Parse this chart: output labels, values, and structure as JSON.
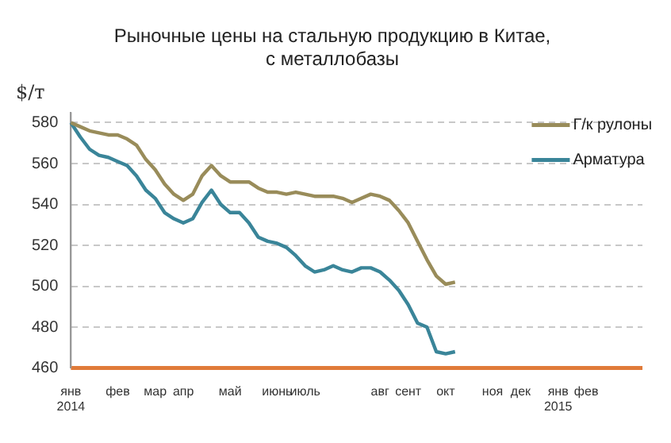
{
  "chart_data": {
    "type": "line",
    "title": "Рыночные цены на стальную продукцию в Китае,\nс металлобазы",
    "ylabel": "$/т",
    "categories": [
      "янв\n2014",
      null,
      null,
      null,
      null,
      "фев",
      null,
      null,
      null,
      "мар",
      null,
      null,
      "апр",
      null,
      null,
      null,
      null,
      "май",
      null,
      null,
      null,
      null,
      "июнь",
      null,
      null,
      "июль",
      null,
      null,
      null,
      null,
      null,
      null,
      null,
      "авг",
      null,
      null,
      "сент",
      null,
      null,
      null,
      "окт",
      null,
      null,
      null,
      null,
      "ноя",
      null,
      null,
      "дек",
      null,
      null,
      null,
      "янв\n2015",
      null,
      null,
      "фев",
      null,
      null,
      null,
      null,
      null,
      null
    ],
    "series": [
      {
        "name": "Г/к рулоны",
        "color": "#998c5a",
        "values": [
          580,
          578,
          576,
          575,
          574,
          574,
          572,
          569,
          562,
          557,
          550,
          545,
          542,
          545,
          554,
          559,
          554,
          551,
          551,
          551,
          548,
          546,
          546,
          545,
          546,
          545,
          544,
          544,
          544,
          543,
          541,
          543,
          545,
          544,
          542,
          537,
          531,
          522,
          513,
          505,
          501,
          502,
          null,
          null,
          null,
          null,
          null,
          null,
          null,
          null,
          null,
          null,
          null,
          null,
          null,
          null,
          null,
          null,
          null,
          null,
          null,
          null
        ]
      },
      {
        "name": "Арматура",
        "color": "#3a8599",
        "values": [
          580,
          573,
          567,
          564,
          563,
          561,
          559,
          554,
          547,
          543,
          536,
          533,
          531,
          533,
          541,
          547,
          540,
          536,
          536,
          531,
          524,
          522,
          521,
          519,
          515,
          510,
          507,
          508,
          510,
          508,
          507,
          509,
          509,
          507,
          503,
          498,
          491,
          482,
          480,
          468,
          467,
          468,
          null,
          null,
          null,
          null,
          null,
          null,
          null,
          null,
          null,
          null,
          null,
          null,
          null,
          null,
          null,
          null,
          null,
          null,
          null,
          null
        ]
      }
    ],
    "ylim": [
      460,
      585
    ],
    "yticks": [
      460,
      480,
      500,
      520,
      540,
      560,
      580
    ],
    "grid": "y",
    "legend": "top right",
    "marker": "none",
    "line_style": "solid"
  }
}
